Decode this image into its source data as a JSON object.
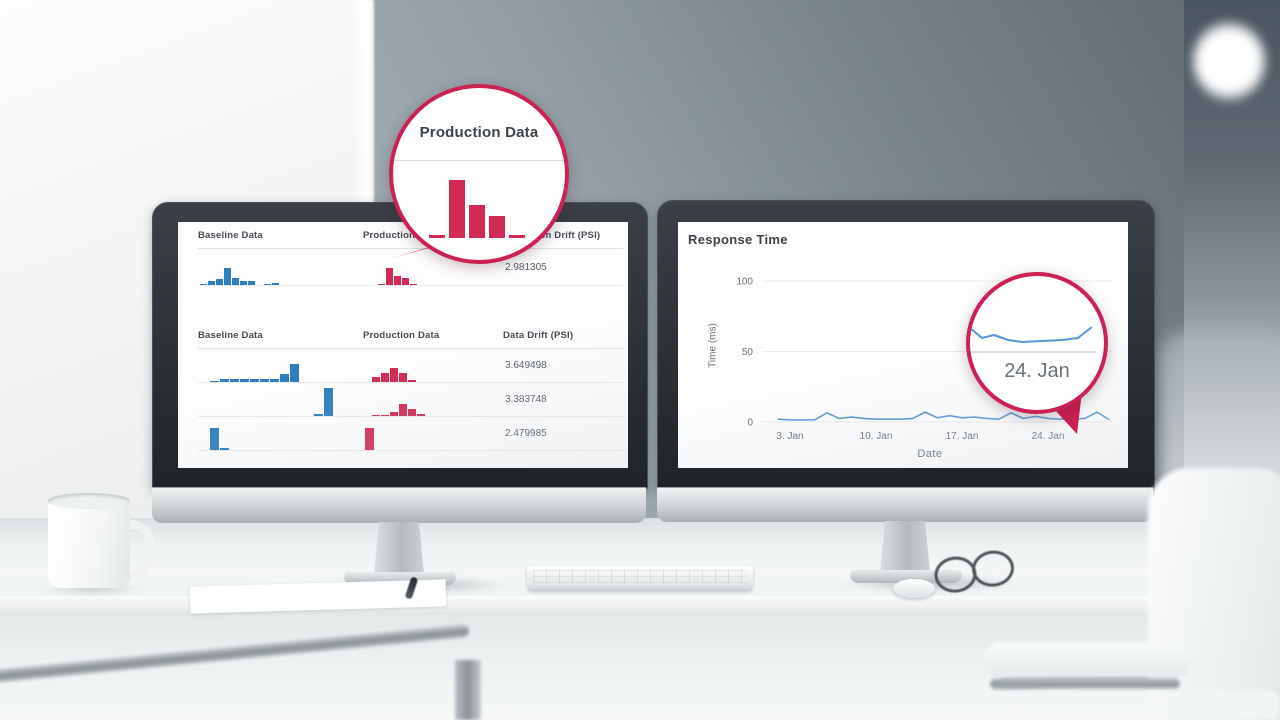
{
  "colors": {
    "crimson": "#d22a54",
    "blue": "#2f7ec0",
    "line_blue": "#5596d8",
    "magnifier_border": "#cb2153",
    "text_dark": "#3d4349",
    "text_mid": "#6b7177"
  },
  "chart_data": [
    {
      "type": "table",
      "columns": [
        "Baseline Data",
        "Production Data",
        "Prediction Drift (PSI)"
      ],
      "rows": [
        {
          "baseline_hist": [
            1.5,
            4,
            6,
            17,
            7,
            4,
            4,
            0,
            1.5,
            2
          ],
          "production_hist": [
            1.5,
            17,
            9,
            7,
            1
          ],
          "psi": "2.981305"
        }
      ]
    },
    {
      "type": "table",
      "columns": [
        "Baseline Data",
        "Production Data",
        "Data Drift (PSI)"
      ],
      "rows": [
        {
          "baseline_hist": [
            1.5,
            3,
            3,
            3.5,
            3,
            3.5,
            3.5,
            8,
            18
          ],
          "production_hist": [
            5,
            9,
            14,
            9,
            2
          ],
          "psi": "3.649498"
        },
        {
          "baseline_hist": [
            2,
            28
          ],
          "production_hist": [
            1.5,
            1.5,
            4,
            12,
            7,
            2
          ],
          "psi": "3.383748"
        },
        {
          "baseline_hist": [
            22,
            2
          ],
          "production_hist": [
            22
          ],
          "psi": "2.479985"
        }
      ]
    },
    {
      "type": "line",
      "title": "Response Time",
      "xlabel": "Date",
      "ylabel": "Time (ms)",
      "ylim": [
        0,
        100
      ],
      "yticks": [
        0,
        50,
        100
      ],
      "xtick_days": [
        3,
        10,
        17,
        24
      ],
      "xtick_labels": [
        "3. Jan",
        "10. Jan",
        "17. Jan",
        "24. Jan"
      ],
      "x_days": [
        2,
        3,
        4,
        5,
        6,
        7,
        8,
        9,
        10,
        11,
        12,
        13,
        14,
        15,
        16,
        17,
        18,
        19,
        20,
        21,
        22,
        23,
        24,
        25,
        26,
        27,
        28,
        29
      ],
      "values": [
        2,
        1.5,
        1.5,
        1.5,
        6.5,
        2.5,
        3.5,
        2.5,
        2,
        2,
        2,
        2.5,
        7,
        3,
        4.5,
        3,
        3.5,
        2.5,
        2,
        6.5,
        2.5,
        4,
        2.5,
        2,
        2,
        2.5,
        7,
        1.5
      ],
      "legend": null,
      "grid": true
    }
  ],
  "magnifiers": {
    "left": {
      "title": "Production Data",
      "hist": [
        3,
        58,
        33,
        22,
        3
      ]
    },
    "right": {
      "label": "24. Jan"
    }
  }
}
